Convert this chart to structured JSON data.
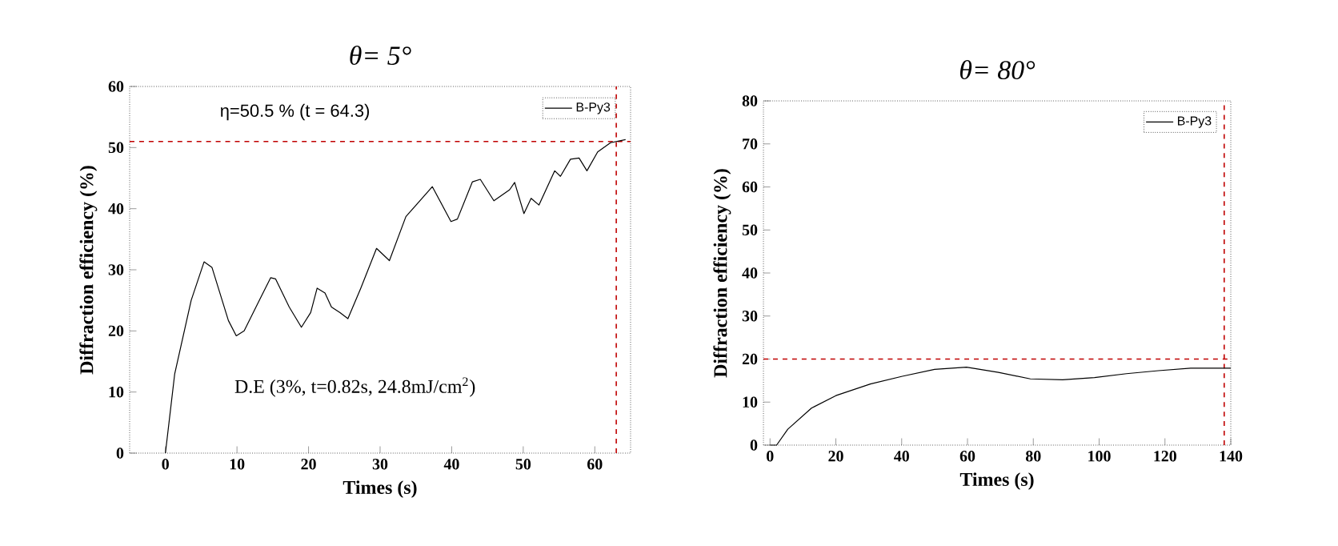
{
  "chart_data": [
    {
      "type": "line",
      "title": "θ= 5°",
      "xlabel": "Times (s)",
      "ylabel": "Diffraction efficiency (%)",
      "xlim": [
        -5,
        65
      ],
      "ylim": [
        0,
        60
      ],
      "xticks": [
        0,
        10,
        20,
        30,
        40,
        50,
        60
      ],
      "yticks": [
        0,
        10,
        20,
        30,
        40,
        50,
        60
      ],
      "legend": "top right",
      "grid": false,
      "marker": "none",
      "series": [
        {
          "name": "B-Py3",
          "color": "#000000",
          "x": [
            0,
            1.3,
            3.6,
            5.4,
            6.5,
            8.8,
            9.9,
            11,
            13.2,
            14.7,
            15.4,
            17.3,
            19,
            20.3,
            21.2,
            22.3,
            23.2,
            24.4,
            25.5,
            27.3,
            29.5,
            31.3,
            33.6,
            37.3,
            39.9,
            40.8,
            42.9,
            44,
            45.9,
            48.1,
            48.8,
            50.1,
            51.1,
            52.2,
            54.4,
            55.2,
            56.6,
            57.8,
            58.9,
            60.4,
            62.2,
            64.3
          ],
          "values": [
            0,
            13,
            25,
            31.3,
            30.4,
            21.7,
            19.2,
            20,
            25.2,
            28.7,
            28.5,
            23.9,
            20.6,
            23,
            27,
            26.2,
            23.9,
            23,
            22,
            27,
            33.5,
            31.5,
            38.7,
            43.6,
            37.9,
            38.3,
            44.4,
            44.8,
            41.3,
            43.1,
            44.3,
            39.2,
            41.7,
            40.6,
            46.2,
            45.3,
            48.1,
            48.3,
            46.2,
            49.3,
            50.8,
            51.3
          ]
        }
      ],
      "ref_lines": [
        {
          "axis": "y",
          "value": 51,
          "color": "#c00000",
          "line_style": "dashed"
        },
        {
          "axis": "x",
          "value": 63,
          "color": "#c00000",
          "line_style": "dashed"
        }
      ],
      "annotations": [
        "η=50.5 % (t = 64.3)",
        "D.E (3%, t=0.82s, 24.8mJ/cm$^{2}$)"
      ]
    },
    {
      "type": "line",
      "title": "θ= 80°",
      "xlabel": "Times (s)",
      "ylabel": "Diffraction efficiency (%)",
      "xlim": [
        -2,
        140
      ],
      "ylim": [
        0,
        80
      ],
      "xticks": [
        0,
        20,
        40,
        60,
        80,
        100,
        120,
        140
      ],
      "yticks": [
        0,
        10,
        20,
        30,
        40,
        50,
        60,
        70,
        80
      ],
      "legend": "top right",
      "grid": false,
      "marker": "none",
      "series": [
        {
          "name": "B-Py3",
          "color": "#000000",
          "x": [
            0,
            2,
            5.4,
            12.6,
            20,
            30.5,
            40.2,
            50,
            59.7,
            69.4,
            79.1,
            88.9,
            98.6,
            108.3,
            118,
            127.8,
            140
          ],
          "values": [
            0,
            0,
            3.7,
            8.6,
            11.5,
            14.2,
            16,
            17.6,
            18.1,
            16.9,
            15.4,
            15.2,
            15.7,
            16.6,
            17.3,
            17.9,
            17.9
          ]
        }
      ],
      "ref_lines": [
        {
          "axis": "y",
          "value": 20,
          "color": "#c00000",
          "line_style": "dashed"
        },
        {
          "axis": "x",
          "value": 138,
          "color": "#c00000",
          "line_style": "dashed"
        }
      ]
    }
  ]
}
